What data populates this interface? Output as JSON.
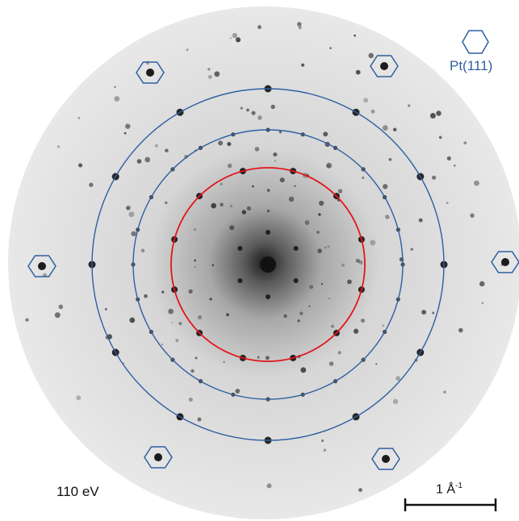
{
  "energy_label": "110 eV",
  "legend": {
    "label": "Pt(111)",
    "icon": "hexagon-icon",
    "color": "#2e5fa0"
  },
  "scale_bar": {
    "value": "1 Å",
    "exponent": "-1"
  },
  "colors": {
    "inner_ring": "#e3141b",
    "outer_rings": "#2e5fa0",
    "spots": "#111111",
    "background": "#e9e9e9"
  }
}
